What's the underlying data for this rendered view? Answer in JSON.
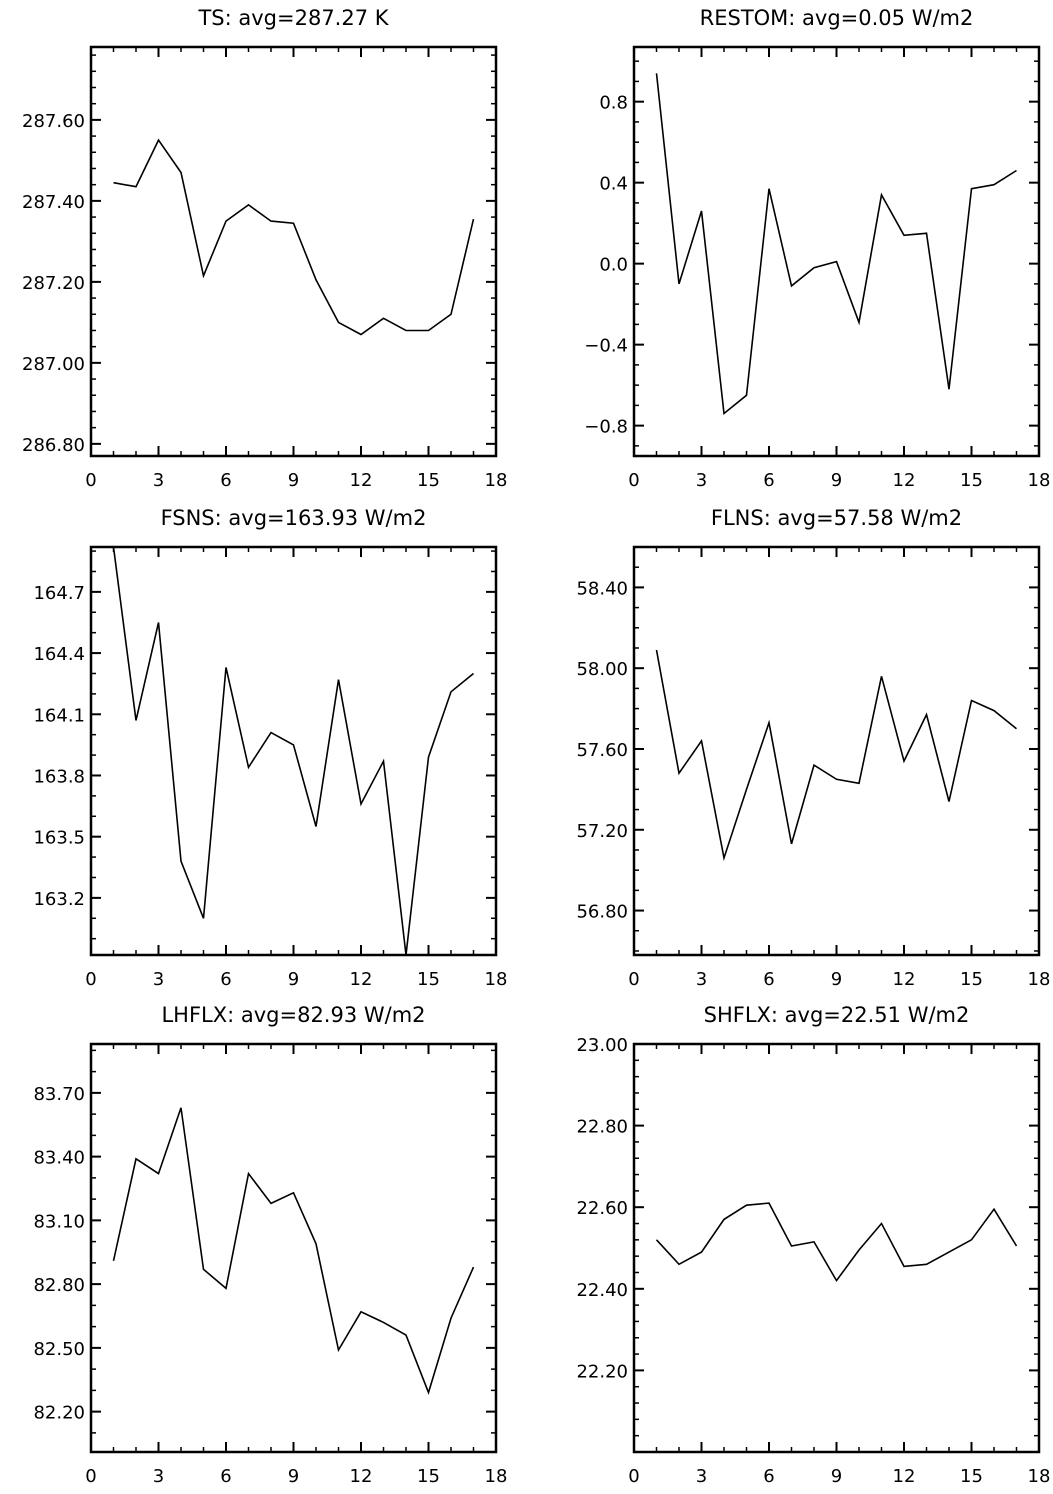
{
  "chart_data": [
    {
      "type": "line",
      "title": "TS: avg=287.27 K",
      "xlim": [
        0,
        18
      ],
      "ylim": [
        286.77,
        287.78
      ],
      "xticks": [
        0,
        3,
        6,
        9,
        12,
        15,
        18
      ],
      "xtick_labels": [
        "0",
        "3",
        "6",
        "9",
        "12",
        "15",
        "18"
      ],
      "yticks": [
        286.8,
        287.0,
        287.2,
        287.4,
        287.6
      ],
      "ytick_labels": [
        "286.80",
        "287.00",
        "287.20",
        "287.40",
        "287.60"
      ],
      "minor_y_per_major": 5,
      "x": [
        1,
        2,
        3,
        4,
        5,
        6,
        7,
        8,
        9,
        10,
        11,
        12,
        13,
        14,
        15,
        16,
        17
      ],
      "values": [
        287.445,
        287.435,
        287.55,
        287.47,
        287.215,
        287.35,
        287.39,
        287.35,
        287.345,
        287.205,
        287.1,
        287.07,
        287.11,
        287.08,
        287.08,
        287.12,
        287.355
      ]
    },
    {
      "type": "line",
      "title": "RESTOM: avg=0.05 W/m2",
      "xlim": [
        0,
        18
      ],
      "ylim": [
        -0.95,
        1.07
      ],
      "xticks": [
        0,
        3,
        6,
        9,
        12,
        15,
        18
      ],
      "xtick_labels": [
        "0",
        "3",
        "6",
        "9",
        "12",
        "15",
        "18"
      ],
      "yticks": [
        -0.8,
        -0.4,
        0.0,
        0.4,
        0.8
      ],
      "ytick_labels": [
        "−0.8",
        "−0.4",
        "0.0",
        "0.4",
        "0.8"
      ],
      "minor_y_per_major": 4,
      "x": [
        1,
        2,
        3,
        4,
        5,
        6,
        7,
        8,
        9,
        10,
        11,
        12,
        13,
        14,
        15,
        16,
        17
      ],
      "values": [
        0.94,
        -0.1,
        0.26,
        -0.74,
        -0.65,
        0.37,
        -0.11,
        -0.02,
        0.01,
        -0.29,
        0.34,
        0.14,
        0.15,
        -0.62,
        0.37,
        0.39,
        0.46
      ]
    },
    {
      "type": "line",
      "title": "FSNS: avg=163.93 W/m2",
      "xlim": [
        0,
        18
      ],
      "ylim": [
        162.92,
        164.92
      ],
      "xticks": [
        0,
        3,
        6,
        9,
        12,
        15,
        18
      ],
      "xtick_labels": [
        "0",
        "3",
        "6",
        "9",
        "12",
        "15",
        "18"
      ],
      "yticks": [
        163.2,
        163.5,
        163.8,
        164.1,
        164.4,
        164.7
      ],
      "ytick_labels": [
        "163.2",
        "163.5",
        "163.8",
        "164.1",
        "164.4",
        "164.7"
      ],
      "minor_y_per_major": 3,
      "x": [
        1,
        2,
        3,
        4,
        5,
        6,
        7,
        8,
        9,
        10,
        11,
        12,
        13,
        14,
        15,
        16,
        17
      ],
      "values": [
        164.92,
        164.07,
        164.55,
        163.38,
        163.1,
        164.33,
        163.84,
        164.01,
        163.95,
        163.55,
        164.27,
        163.66,
        163.87,
        162.92,
        163.89,
        164.21,
        164.3
      ]
    },
    {
      "type": "line",
      "title": "FLNS: avg=57.58 W/m2",
      "xlim": [
        0,
        18
      ],
      "ylim": [
        56.58,
        58.6
      ],
      "xticks": [
        0,
        3,
        6,
        9,
        12,
        15,
        18
      ],
      "xtick_labels": [
        "0",
        "3",
        "6",
        "9",
        "12",
        "15",
        "18"
      ],
      "yticks": [
        56.8,
        57.2,
        57.6,
        58.0,
        58.4
      ],
      "ytick_labels": [
        "56.80",
        "57.20",
        "57.60",
        "58.00",
        "58.40"
      ],
      "minor_y_per_major": 4,
      "x": [
        1,
        2,
        3,
        4,
        5,
        6,
        7,
        8,
        9,
        10,
        11,
        12,
        13,
        14,
        15,
        16,
        17
      ],
      "values": [
        58.09,
        57.48,
        57.64,
        57.06,
        57.4,
        57.73,
        57.13,
        57.52,
        57.45,
        57.43,
        57.96,
        57.54,
        57.77,
        57.34,
        57.84,
        57.79,
        57.7
      ]
    },
    {
      "type": "line",
      "title": "LHFLX: avg=82.93 W/m2",
      "xlim": [
        0,
        18
      ],
      "ylim": [
        82.01,
        83.93
      ],
      "xticks": [
        0,
        3,
        6,
        9,
        12,
        15,
        18
      ],
      "xtick_labels": [
        "0",
        "3",
        "6",
        "9",
        "12",
        "15",
        "18"
      ],
      "yticks": [
        82.2,
        82.5,
        82.8,
        83.1,
        83.4,
        83.7
      ],
      "ytick_labels": [
        "82.20",
        "82.50",
        "82.80",
        "83.10",
        "83.40",
        "83.70"
      ],
      "minor_y_per_major": 3,
      "x": [
        1,
        2,
        3,
        4,
        5,
        6,
        7,
        8,
        9,
        10,
        11,
        12,
        13,
        14,
        15,
        16,
        17
      ],
      "values": [
        82.91,
        83.39,
        83.32,
        83.63,
        82.87,
        82.78,
        83.32,
        83.18,
        83.23,
        82.99,
        82.49,
        82.67,
        82.62,
        82.56,
        82.29,
        82.64,
        82.88
      ]
    },
    {
      "type": "line",
      "title": "SHFLX: avg=22.51 W/m2",
      "xlim": [
        0,
        18
      ],
      "ylim": [
        22.0,
        23.0
      ],
      "xticks": [
        0,
        3,
        6,
        9,
        12,
        15,
        18
      ],
      "xtick_labels": [
        "0",
        "3",
        "6",
        "9",
        "12",
        "15",
        "18"
      ],
      "yticks": [
        22.2,
        22.4,
        22.6,
        22.8,
        23.0
      ],
      "ytick_labels": [
        "22.20",
        "22.40",
        "22.60",
        "22.80",
        "23.00"
      ],
      "minor_y_per_major": 5,
      "x": [
        1,
        2,
        3,
        4,
        5,
        6,
        7,
        8,
        9,
        10,
        11,
        12,
        13,
        14,
        15,
        16,
        17
      ],
      "values": [
        22.52,
        22.46,
        22.49,
        22.57,
        22.605,
        22.61,
        22.505,
        22.515,
        22.42,
        22.495,
        22.56,
        22.455,
        22.46,
        22.49,
        22.52,
        22.595,
        22.505
      ]
    }
  ]
}
